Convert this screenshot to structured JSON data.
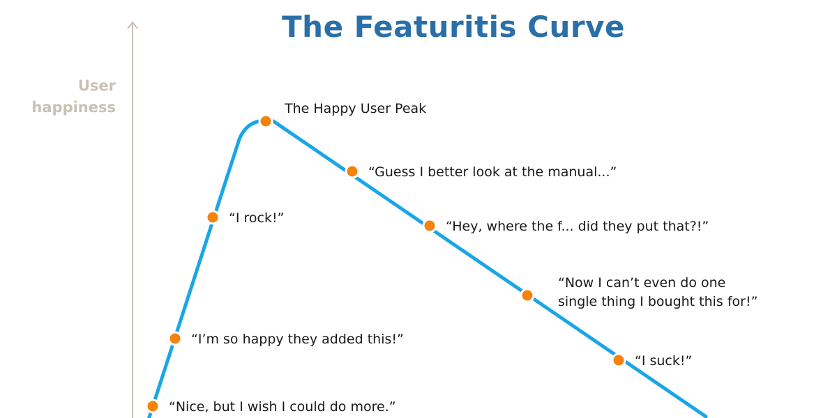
{
  "title": "The Featuritis Curve",
  "y_axis_label": [
    "User",
    "happiness"
  ],
  "colors": {
    "title": "#2a6fa8",
    "axis": "#c9c1b3",
    "curve": "#1aa6e6",
    "point": "#f5820d"
  },
  "points": [
    {
      "label": [
        "“Nice, but I wish I could do more.”"
      ]
    },
    {
      "label": [
        "“I’m so happy they added this!”"
      ]
    },
    {
      "label": [
        "“I rock!”"
      ]
    },
    {
      "label": [
        "The Happy User Peak"
      ]
    },
    {
      "label": [
        "“Guess I better look at the manual...”"
      ]
    },
    {
      "label": [
        "“Hey, where the f... did they put that?!”"
      ]
    },
    {
      "label": [
        "“Now I can’t even do one",
        "single thing I bought this for!”"
      ]
    },
    {
      "label": [
        "“I suck!”"
      ]
    }
  ]
}
